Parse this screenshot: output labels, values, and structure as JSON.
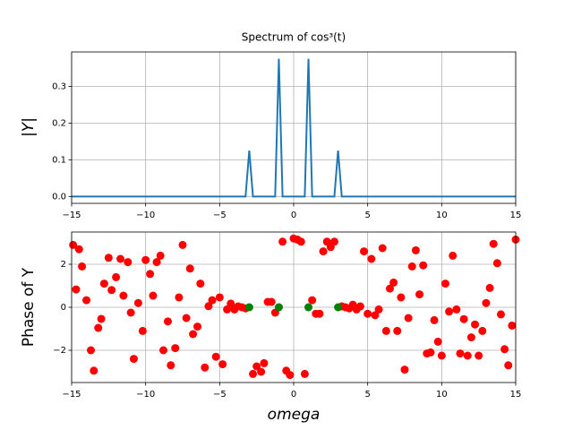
{
  "chart_data": [
    {
      "type": "line",
      "title": "Spectrum of cos³(t)",
      "y_label": "|Y|",
      "grid": true,
      "xlim": [
        -15,
        15
      ],
      "ylim": [
        -0.01875,
        0.39375
      ],
      "xticks": [
        {
          "value": -15,
          "label": "−15"
        },
        {
          "value": -10,
          "label": "−10"
        },
        {
          "value": -5,
          "label": "−5"
        },
        0,
        5,
        10,
        15
      ],
      "yticks": [
        {
          "value": 0,
          "label": "0.0"
        },
        0.1,
        0.2,
        0.3
      ],
      "series": [
        {
          "color": "#1f77b4",
          "x": [
            -15,
            -3.25,
            -3,
            -2.75,
            -1.25,
            -1,
            -0.75,
            0.75,
            1,
            1.25,
            2.75,
            3,
            3.25,
            15
          ],
          "values": [
            0,
            0,
            0.125,
            0,
            0,
            0.375,
            0,
            0,
            0.375,
            0,
            0,
            0.125,
            0,
            0
          ]
        }
      ]
    },
    {
      "type": "scatter",
      "x_label": "omega",
      "y_label": "Phase of Y",
      "grid": true,
      "xlim": [
        -15,
        15
      ],
      "ylim": [
        -3.5,
        3.5
      ],
      "xticks": [
        {
          "value": -15,
          "label": "−15"
        },
        {
          "value": -10,
          "label": "−10"
        },
        {
          "value": -5,
          "label": "−5"
        },
        0,
        5,
        10,
        15
      ],
      "yticks": [
        {
          "value": -2,
          "label": "−2"
        },
        0,
        2
      ],
      "series": [
        {
          "color": "#ff0000",
          "x": [
            -14.9,
            -14.7,
            -14.5,
            -14.3,
            -14.0,
            -13.7,
            -13.5,
            -13.2,
            -13.0,
            -12.8,
            -12.5,
            -12.3,
            -12.0,
            -11.7,
            -11.5,
            -11.2,
            -11.0,
            -10.8,
            -10.5,
            -10.2,
            -10.0,
            -9.7,
            -9.5,
            -9.25,
            -9.0,
            -8.8,
            -8.5,
            -8.3,
            -8.0,
            -7.75,
            -7.5,
            -7.25,
            -7.0,
            -6.8,
            -6.5,
            -6.3,
            -6.0,
            -5.75,
            -5.5,
            -5.25,
            -5.0,
            -4.8,
            -4.5,
            -4.25,
            -4.0,
            -3.75,
            -3.5,
            -3.25,
            -2.75,
            -2.5,
            -2.2,
            -2.0,
            -1.75,
            -1.5,
            -1.25,
            -0.75,
            -0.5,
            -0.25,
            0,
            0.25,
            0.5,
            0.75,
            1.25,
            1.5,
            1.75,
            2.0,
            2.25,
            2.5,
            2.75,
            3.25,
            3.5,
            3.75,
            4.0,
            4.25,
            4.5,
            4.75,
            5.0,
            5.25,
            5.5,
            5.75,
            6.0,
            6.25,
            6.5,
            6.75,
            7.0,
            7.25,
            7.5,
            7.75,
            8.0,
            8.25,
            8.5,
            8.75,
            9.0,
            9.25,
            9.5,
            9.75,
            10.0,
            10.25,
            10.5,
            10.75,
            11.0,
            11.25,
            11.5,
            11.75,
            12.0,
            12.25,
            12.5,
            12.75,
            13.0,
            13.25,
            13.5,
            13.75,
            14.0,
            14.25,
            14.5,
            14.75,
            15
          ],
          "values": [
            2.9,
            0.83,
            2.7,
            1.9,
            0.33,
            -2.0,
            -2.95,
            -0.96,
            -0.54,
            1.1,
            2.3,
            0.8,
            1.4,
            2.25,
            0.54,
            2.1,
            -0.25,
            -2.4,
            0.2,
            -1.1,
            2.2,
            1.55,
            0.54,
            2.1,
            2.4,
            -2.0,
            -0.66,
            -2.7,
            -1.9,
            0.46,
            2.9,
            -0.5,
            1.8,
            -1.25,
            -0.9,
            1.1,
            -2.8,
            0.05,
            0.33,
            -2.3,
            0.46,
            -2.65,
            -0.1,
            0.17,
            -0.1,
            0.04,
            0,
            -0.05,
            -3.1,
            -2.75,
            -3.0,
            -2.6,
            0.25,
            0.25,
            -0.25,
            3.05,
            -2.95,
            -3.15,
            3.2,
            3.15,
            3.05,
            -3.1,
            0.33,
            -0.3,
            -0.3,
            2.6,
            3.05,
            2.8,
            3.05,
            0.04,
            0,
            -0.05,
            0.12,
            -0.1,
            0.04,
            2.6,
            -0.3,
            2.25,
            -0.37,
            -0.1,
            2.75,
            -1.1,
            0.87,
            1.15,
            -1.1,
            0.46,
            -2.9,
            -0.5,
            1.9,
            2.65,
            0.6,
            1.95,
            -2.15,
            -2.1,
            -0.6,
            -1.6,
            -2.25,
            1.1,
            -0.2,
            2.4,
            -0.1,
            -2.15,
            -0.55,
            -2.25,
            -1.4,
            -0.8,
            -2.25,
            -1.1,
            0.2,
            0.9,
            2.95,
            2.05,
            -0.33,
            -1.95,
            -2.7,
            -0.85,
            3.15
          ]
        },
        {
          "color": "#008000",
          "x": [
            -3,
            -1,
            1,
            3
          ],
          "values": [
            0,
            0,
            0,
            0
          ]
        }
      ]
    }
  ]
}
